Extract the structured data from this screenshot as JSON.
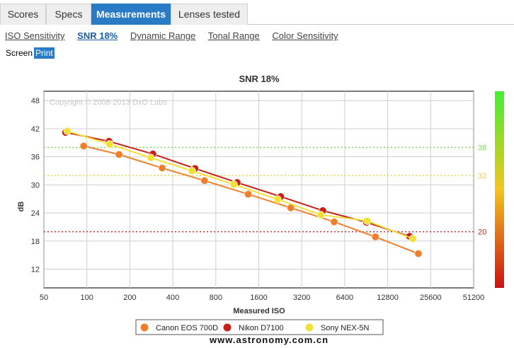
{
  "tabs": [
    {
      "label": "Scores"
    },
    {
      "label": "Specs"
    },
    {
      "label": "Measurements"
    },
    {
      "label": "Lenses tested"
    }
  ],
  "active_tab": "Measurements",
  "subnav": [
    {
      "label": "ISO Sensitivity"
    },
    {
      "label": "SNR 18%"
    },
    {
      "label": "Dynamic Range"
    },
    {
      "label": "Tonal Range"
    },
    {
      "label": "Color Sensitivity"
    }
  ],
  "active_subnav": "SNR 18%",
  "modes": {
    "screen": "Screen",
    "print": "Print"
  },
  "active_mode": "Print",
  "watermark": "www.astronomy.com.cn",
  "colors": {
    "active_tab": "#2a7bc6"
  },
  "chart_data": {
    "type": "line",
    "title": "SNR 18%",
    "copyright": "Copyright © 2008-2013 DxO Labs",
    "xlabel": "Measured ISO",
    "ylabel": "dB",
    "x_scale": "log2",
    "xlim": [
      50,
      51200
    ],
    "ylim": [
      8,
      50
    ],
    "x_ticks": [
      "50",
      "100",
      "200",
      "400",
      "800",
      "1600",
      "3200",
      "6400",
      "12800",
      "25600",
      "51200"
    ],
    "y_ticks": [
      "12",
      "18",
      "24",
      "30",
      "36",
      "42",
      "48"
    ],
    "reference_lines": [
      {
        "value": 38,
        "label": "38",
        "color": "#7ed957"
      },
      {
        "value": 32,
        "label": "32",
        "color": "#e8d24a"
      },
      {
        "value": 20,
        "label": "20",
        "color": "#c62828"
      }
    ],
    "scale_bar": {
      "top_color": "#44ee33",
      "mid_color": "#f2c51f",
      "bottom_color": "#cc1111"
    },
    "grid": true,
    "legend_position": "bottom",
    "series": [
      {
        "name": "Canon EOS 700D",
        "color": "#f07e2d",
        "x": [
          95,
          168,
          337,
          667,
          1350,
          2680,
          5400,
          10500,
          21000
        ],
        "y": [
          38.3,
          36.5,
          33.6,
          30.9,
          28.0,
          25.1,
          22.1,
          18.9,
          15.3
        ]
      },
      {
        "name": "Nikon D7100",
        "color": "#c62018",
        "x": [
          71,
          143,
          290,
          572,
          1130,
          2280,
          4500,
          9100,
          18200
        ],
        "y": [
          41.2,
          39.3,
          36.6,
          33.5,
          30.5,
          27.5,
          24.5,
          22.0,
          19.0
        ]
      },
      {
        "name": "Sony NEX-5N",
        "color": "#f3e036",
        "x": [
          73,
          144,
          280,
          545,
          1070,
          2170,
          4350,
          9200,
          19200
        ],
        "y": [
          41.5,
          38.7,
          35.8,
          33.0,
          30.1,
          26.9,
          23.6,
          22.3,
          18.5
        ]
      }
    ]
  }
}
